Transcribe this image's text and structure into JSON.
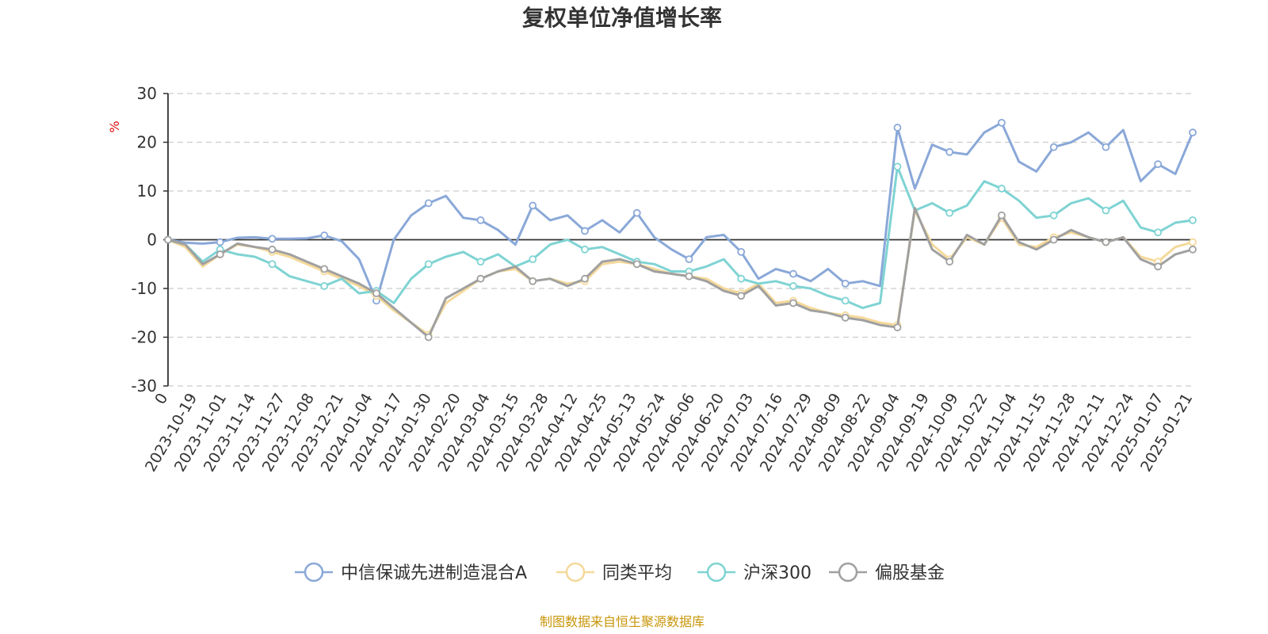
{
  "chart_data": {
    "type": "line",
    "title": "复权单位净值增长率",
    "ylabel": "%",
    "ylim": [
      -30,
      30
    ],
    "yticks": [
      -30,
      -20,
      -10,
      0,
      10,
      20,
      30
    ],
    "grid": true,
    "legend_position": "bottom",
    "source_note": "制图数据来自恒生聚源数据库",
    "x_tick_labels": [
      "0",
      "2023-10-19",
      "2023-11-01",
      "2023-11-14",
      "2023-11-27",
      "2023-12-08",
      "2023-12-21",
      "2024-01-04",
      "2024-01-17",
      "2024-01-30",
      "2024-02-20",
      "2024-03-04",
      "2024-03-15",
      "2024-03-28",
      "2024-04-12",
      "2024-04-25",
      "2024-05-13",
      "2024-05-24",
      "2024-06-06",
      "2024-06-20",
      "2024-07-03",
      "2024-07-16",
      "2024-07-29",
      "2024-08-09",
      "2024-08-22",
      "2024-09-04",
      "2024-09-19",
      "2024-10-09",
      "2024-10-22",
      "2024-11-04",
      "2024-11-15",
      "2024-11-28",
      "2024-12-11",
      "2024-12-24",
      "2025-01-07",
      "2025-01-21"
    ],
    "series": [
      {
        "name": "中信保诚先进制造混合A",
        "color": "#8aa8d8",
        "values": [
          0,
          -0.6,
          -0.8,
          -0.5,
          0.4,
          0.5,
          0.2,
          0.2,
          0.3,
          0.9,
          -0.3,
          -4.0,
          -12.5,
          0,
          5.0,
          7.5,
          9.0,
          4.5,
          4.0,
          2.0,
          -1.0,
          7.0,
          4.0,
          5.0,
          1.8,
          4.0,
          1.5,
          5.5,
          0.5,
          -2.0,
          -4.0,
          0.5,
          1.0,
          -2.5,
          -8.0,
          -6.0,
          -7.0,
          -8.5,
          -6.0,
          -9.0,
          -8.5,
          -9.5,
          23.0,
          10.5,
          19.5,
          18.0,
          17.5,
          22.0,
          24.0,
          16.0,
          14.0,
          19.0,
          20.0,
          22.0,
          19.0,
          22.5,
          12.0,
          15.5,
          13.5,
          22.0
        ]
      },
      {
        "name": "同类平均",
        "color": "#f5d99a",
        "values": [
          0,
          -1.5,
          -5.5,
          -3.0,
          -1.0,
          -1.5,
          -2.5,
          -3.5,
          -5.0,
          -6.5,
          -8.0,
          -9.5,
          -11.5,
          -14.5,
          -17.0,
          -19.5,
          -13.0,
          -10.5,
          -8.0,
          -6.5,
          -6.0,
          -8.5,
          -8.0,
          -9.0,
          -8.5,
          -5.0,
          -4.5,
          -5.0,
          -6.0,
          -7.0,
          -7.5,
          -8.0,
          -10.0,
          -11.0,
          -9.0,
          -13.0,
          -12.5,
          -14.0,
          -15.0,
          -15.5,
          -16.0,
          -17.0,
          -17.5,
          6.0,
          -1.0,
          -4.0,
          0.5,
          -1.0,
          4.5,
          -1.0,
          -1.5,
          0.5,
          1.5,
          0.5,
          -0.5,
          0.5,
          -3.5,
          -4.5,
          -1.5,
          -0.5
        ]
      },
      {
        "name": "沪深300",
        "color": "#7fd3d3",
        "values": [
          0,
          -1.0,
          -4.5,
          -2.0,
          -3.0,
          -3.5,
          -5.0,
          -7.5,
          -8.5,
          -9.5,
          -8.0,
          -11.0,
          -10.5,
          -13.0,
          -8.0,
          -5.0,
          -3.5,
          -2.5,
          -4.5,
          -3.0,
          -5.5,
          -4.0,
          -1.0,
          0,
          -2.0,
          -1.5,
          -3.0,
          -4.5,
          -5.0,
          -6.5,
          -6.5,
          -5.5,
          -4.0,
          -8.0,
          -9.0,
          -8.5,
          -9.5,
          -10.0,
          -11.5,
          -12.5,
          -14.0,
          -13.0,
          15.0,
          6.0,
          7.5,
          5.5,
          7.0,
          12.0,
          10.5,
          8.0,
          4.5,
          5.0,
          7.5,
          8.5,
          6.0,
          8.0,
          2.5,
          1.5,
          3.5,
          4.0
        ]
      },
      {
        "name": "偏股基金",
        "color": "#a0a0a0",
        "values": [
          0,
          -1.0,
          -5.0,
          -3.0,
          -0.8,
          -1.5,
          -2.0,
          -3.0,
          -4.5,
          -6.0,
          -7.5,
          -9.0,
          -11.0,
          -14.0,
          -17.0,
          -20.0,
          -12.0,
          -10.0,
          -8.0,
          -6.5,
          -5.5,
          -8.5,
          -8.0,
          -9.5,
          -8.0,
          -4.5,
          -4.0,
          -5.0,
          -6.5,
          -7.0,
          -7.5,
          -8.5,
          -10.5,
          -11.5,
          -9.5,
          -13.5,
          -13.0,
          -14.5,
          -15.0,
          -16.0,
          -16.5,
          -17.5,
          -18.0,
          6.5,
          -2.0,
          -4.5,
          1.0,
          -1.0,
          5.0,
          -0.5,
          -2.0,
          0,
          2.0,
          0.5,
          -0.5,
          0.5,
          -4.0,
          -5.5,
          -3.0,
          -2.0
        ]
      }
    ]
  }
}
